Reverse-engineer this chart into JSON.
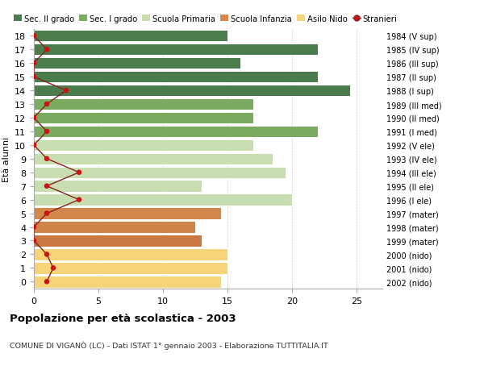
{
  "ages": [
    18,
    17,
    16,
    15,
    14,
    13,
    12,
    11,
    10,
    9,
    8,
    7,
    6,
    5,
    4,
    3,
    2,
    1,
    0
  ],
  "bar_values": [
    15,
    22,
    16,
    22,
    24.5,
    17,
    17,
    22,
    17,
    18.5,
    19.5,
    13,
    20,
    14.5,
    12.5,
    13,
    15,
    15,
    14.5
  ],
  "bar_colors": [
    "#4a7c4e",
    "#4a7c4e",
    "#4a7c4e",
    "#4a7c4e",
    "#4a7c4e",
    "#7aab5e",
    "#7aab5e",
    "#7aab5e",
    "#c8ddb0",
    "#c8ddb0",
    "#c8ddb0",
    "#c8ddb0",
    "#c8ddb0",
    "#d4874a",
    "#d0844a",
    "#c87840",
    "#f5d47a",
    "#f5d47a",
    "#f5d47a"
  ],
  "stranieri_values": [
    0,
    1,
    0,
    0,
    2.5,
    1,
    0,
    1,
    0,
    1,
    3.5,
    1,
    3.5,
    1,
    0,
    0,
    1,
    1.5,
    1
  ],
  "right_labels": [
    "1984 (V sup)",
    "1985 (IV sup)",
    "1986 (III sup)",
    "1987 (II sup)",
    "1988 (I sup)",
    "1989 (III med)",
    "1990 (II med)",
    "1991 (I med)",
    "1992 (V ele)",
    "1993 (IV ele)",
    "1994 (III ele)",
    "1995 (II ele)",
    "1996 (I ele)",
    "1997 (mater)",
    "1998 (mater)",
    "1999 (mater)",
    "2000 (nido)",
    "2001 (nido)",
    "2002 (nido)"
  ],
  "legend_labels": [
    "Sec. II grado",
    "Sec. I grado",
    "Scuola Primaria",
    "Scuola Infanzia",
    "Asilo Nido",
    "Stranieri"
  ],
  "legend_colors": [
    "#4a7c4e",
    "#7aab5e",
    "#c8ddb0",
    "#d4874a",
    "#f5d47a",
    "#b22222"
  ],
  "ylabel": "Età alunni",
  "title": "Popolazione per età scolastica - 2003",
  "subtitle": "COMUNE DI VIGANÒ (LC) - Dati ISTAT 1° gennaio 2003 - Elaborazione TUTTITALIA.IT",
  "xlim": [
    0,
    27
  ],
  "xticks": [
    0,
    5,
    10,
    15,
    20,
    25
  ],
  "bg_color": "#ffffff",
  "stranieri_color": "#cc1111",
  "stranieri_line_color": "#882222"
}
